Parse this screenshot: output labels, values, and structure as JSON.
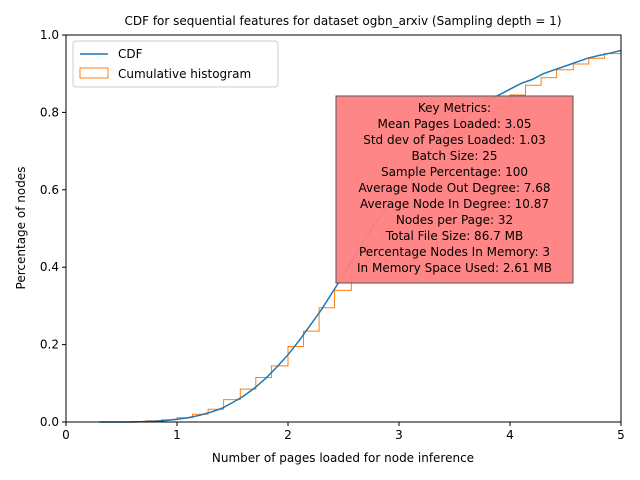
{
  "chart_data": {
    "type": "line",
    "title": "CDF for sequential features for dataset ogbn_arxiv (Sampling depth = 1)",
    "xlabel": "Number of pages loaded for node inference",
    "ylabel": "Percentage of nodes",
    "xlim": [
      0,
      5
    ],
    "ylim": [
      0,
      1.0
    ],
    "x_ticks": [
      "0",
      "1",
      "2",
      "3",
      "4",
      "5"
    ],
    "y_ticks": [
      "0.0",
      "0.2",
      "0.4",
      "0.6",
      "0.8",
      "1.0"
    ],
    "grid": false,
    "legend_position": "top-left",
    "series": [
      {
        "name": "CDF",
        "style": "line",
        "color": "#1f77b4",
        "x": [
          0.3,
          0.6,
          0.8,
          0.9,
          1.0,
          1.1,
          1.2,
          1.3,
          1.4,
          1.5,
          1.6,
          1.7,
          1.8,
          1.9,
          2.0,
          2.1,
          2.2,
          2.3,
          2.4,
          2.5,
          2.6,
          2.7,
          2.8,
          2.9,
          3.0,
          3.1,
          3.2,
          3.3,
          3.4,
          3.5,
          3.6,
          3.7,
          3.8,
          3.9,
          4.0,
          4.1,
          4.2,
          4.3,
          4.4,
          4.5,
          4.6,
          4.7,
          4.8,
          4.9,
          5.0
        ],
        "y": [
          0.0,
          0.0,
          0.002,
          0.004,
          0.007,
          0.011,
          0.017,
          0.025,
          0.035,
          0.05,
          0.067,
          0.088,
          0.113,
          0.142,
          0.174,
          0.21,
          0.25,
          0.29,
          0.335,
          0.38,
          0.43,
          0.475,
          0.52,
          0.56,
          0.6,
          0.64,
          0.675,
          0.71,
          0.74,
          0.765,
          0.79,
          0.81,
          0.83,
          0.845,
          0.86,
          0.875,
          0.885,
          0.9,
          0.91,
          0.92,
          0.93,
          0.94,
          0.947,
          0.953,
          0.96
        ]
      },
      {
        "name": "Cumulative histogram",
        "style": "step",
        "color": "#ff7f0e",
        "bins": [
          0.3,
          0.43,
          0.58,
          0.72,
          0.86,
          1.0,
          1.14,
          1.28,
          1.42,
          1.57,
          1.71,
          1.85,
          2.0,
          2.14,
          2.28,
          2.42,
          2.57,
          2.71,
          2.85,
          3.0,
          3.14,
          3.28,
          3.42,
          3.57,
          3.71,
          3.85,
          4.0,
          4.14,
          4.28,
          4.42,
          4.57,
          4.71,
          4.85,
          5.0
        ],
        "values": [
          0.0,
          0.0,
          0.001,
          0.003,
          0.006,
          0.011,
          0.02,
          0.033,
          0.058,
          0.085,
          0.115,
          0.145,
          0.195,
          0.235,
          0.295,
          0.34,
          0.395,
          0.455,
          0.5,
          0.555,
          0.605,
          0.655,
          0.705,
          0.75,
          0.785,
          0.81,
          0.845,
          0.87,
          0.89,
          0.91,
          0.925,
          0.94,
          0.952,
          0.962
        ]
      }
    ],
    "annotation": {
      "background": "#ff7f7f",
      "lines": [
        "Key Metrics:",
        "Mean Pages Loaded: 3.05",
        "Std dev of Pages Loaded: 1.03",
        "Batch Size: 25",
        "Sample Percentage: 100",
        "Average Node Out Degree: 7.68",
        "Average Node In Degree: 10.87",
        "Nodes per Page: 32",
        "Total File Size: 86.7 MB",
        "Percentage Nodes In Memory: 3",
        "In Memory Space Used: 2.61 MB"
      ]
    }
  }
}
